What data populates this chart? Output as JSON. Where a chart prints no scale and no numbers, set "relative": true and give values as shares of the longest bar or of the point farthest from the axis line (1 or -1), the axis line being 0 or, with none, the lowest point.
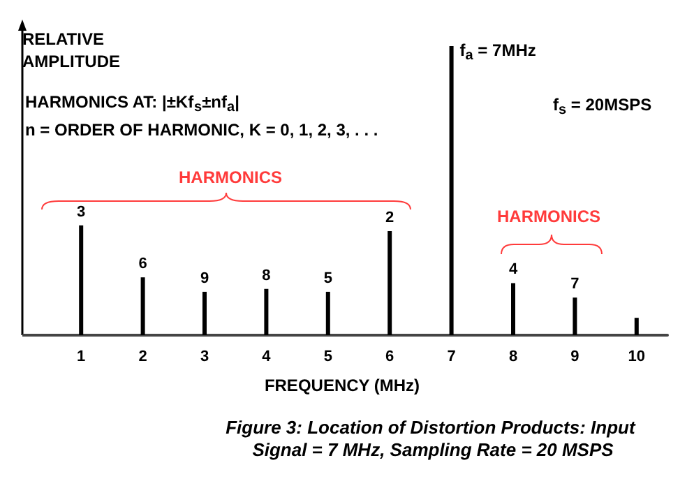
{
  "chart_data": {
    "type": "bar",
    "relative": true,
    "title": "Figure 3: Location of Distortion Products: Input Signal = 7 MHz, Sampling Rate = 20 MSPS",
    "xlabel": "FREQUENCY (MHz)",
    "ylabel": "RELATIVE AMPLITUDE",
    "categories": [
      "1",
      "2",
      "3",
      "4",
      "5",
      "6",
      "7",
      "8",
      "9",
      "10"
    ],
    "values": [
      0.38,
      0.2,
      0.15,
      0.16,
      0.15,
      0.36,
      1,
      0.18,
      0.13,
      0.06
    ],
    "color": "#000000",
    "annotations": [
      "HARMONICS AT: |±Kf$_{s}$±nf$_{a}$|",
      "n = ORDER OF HARMONIC, K = 0, 1, 2, 3, . . .",
      "f$_{s}$ = 20MSPS",
      {
        "text": "f$_{a}$ = 7MHz",
        "x": "7",
        "y": 1
      },
      "HARMONICS",
      "HARMONICS",
      {
        "text": "3",
        "x": "1",
        "y": 0.38
      },
      {
        "text": "6",
        "x": "2",
        "y": 0.2
      },
      {
        "text": "9",
        "x": "3",
        "y": 0.15
      },
      {
        "text": "8",
        "x": "4",
        "y": 0.16
      },
      {
        "text": "5",
        "x": "5",
        "y": 0.15
      },
      {
        "text": "2",
        "x": "6",
        "y": 0.36
      },
      {
        "text": "4",
        "x": "8",
        "y": 0.18
      },
      {
        "text": "7",
        "x": "9",
        "y": 0.13
      }
    ],
    "grid": false
  }
}
